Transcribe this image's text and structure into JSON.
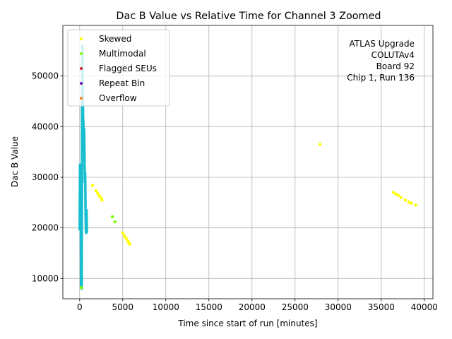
{
  "chart_data": {
    "type": "scatter",
    "title": "Dac B Value vs Relative Time for Channel 3 Zoomed",
    "xlabel": "Time since start of run [minutes]",
    "ylabel": "Dac B Value",
    "xlim": [
      -1950,
      41000
    ],
    "ylim": [
      6000,
      60000
    ],
    "xticks": [
      0,
      5000,
      10000,
      15000,
      20000,
      25000,
      30000,
      35000,
      40000
    ],
    "xtick_labels": [
      "0",
      "5000",
      "10000",
      "15000",
      "20000",
      "25000",
      "30000",
      "35000",
      "40000"
    ],
    "yticks": [
      10000,
      20000,
      30000,
      40000,
      50000
    ],
    "ytick_labels": [
      "10000",
      "20000",
      "30000",
      "40000",
      "50000"
    ],
    "grid": true,
    "legend_placement": "upper-left",
    "annotation": [
      "ATLAS Upgrade",
      "COLUTAv4",
      "Board 92",
      "Chip 1, Run 136"
    ],
    "main_trace": {
      "name": "",
      "color": "#17becf",
      "points": [
        [
          0,
          19500
        ],
        [
          40,
          32500
        ],
        [
          80,
          24000
        ],
        [
          120,
          31000
        ],
        [
          160,
          8500
        ],
        [
          200,
          27000
        ],
        [
          240,
          8000
        ],
        [
          280,
          44000
        ],
        [
          320,
          56000
        ],
        [
          360,
          48000
        ],
        [
          400,
          42000
        ],
        [
          440,
          40500
        ],
        [
          480,
          36000
        ],
        [
          520,
          39500
        ],
        [
          560,
          35000
        ],
        [
          600,
          29000
        ],
        [
          640,
          31000
        ],
        [
          680,
          24000
        ],
        [
          720,
          19500
        ],
        [
          760,
          19000
        ],
        [
          800,
          23500
        ],
        [
          840,
          19000
        ]
      ]
    },
    "series": [
      {
        "name": "Skewed",
        "color": "#ffff00",
        "points": [
          [
            1500,
            28400
          ],
          [
            1900,
            27300
          ],
          [
            2100,
            26800
          ],
          [
            2300,
            26300
          ],
          [
            2500,
            25900
          ],
          [
            2600,
            25500
          ],
          [
            5000,
            19000
          ],
          [
            5200,
            18400
          ],
          [
            5400,
            17900
          ],
          [
            5600,
            17400
          ],
          [
            5700,
            17100
          ],
          [
            5800,
            16800
          ],
          [
            27900,
            36500
          ],
          [
            36400,
            27000
          ],
          [
            36700,
            26700
          ],
          [
            37000,
            26400
          ],
          [
            37300,
            26000
          ],
          [
            37800,
            25500
          ],
          [
            38200,
            25100
          ],
          [
            38500,
            24900
          ],
          [
            39000,
            24500
          ]
        ]
      },
      {
        "name": "Multimodal",
        "color": "#7cfc00",
        "points": [
          [
            3800,
            22200
          ],
          [
            4100,
            21200
          ],
          [
            200,
            8200
          ]
        ]
      },
      {
        "name": "Flagged SEUs",
        "color": "#d62728",
        "points": []
      },
      {
        "name": "Repeat Bin",
        "color": "#6a0dad",
        "points": []
      },
      {
        "name": "Overflow",
        "color": "#ff7f0e",
        "points": []
      }
    ]
  }
}
